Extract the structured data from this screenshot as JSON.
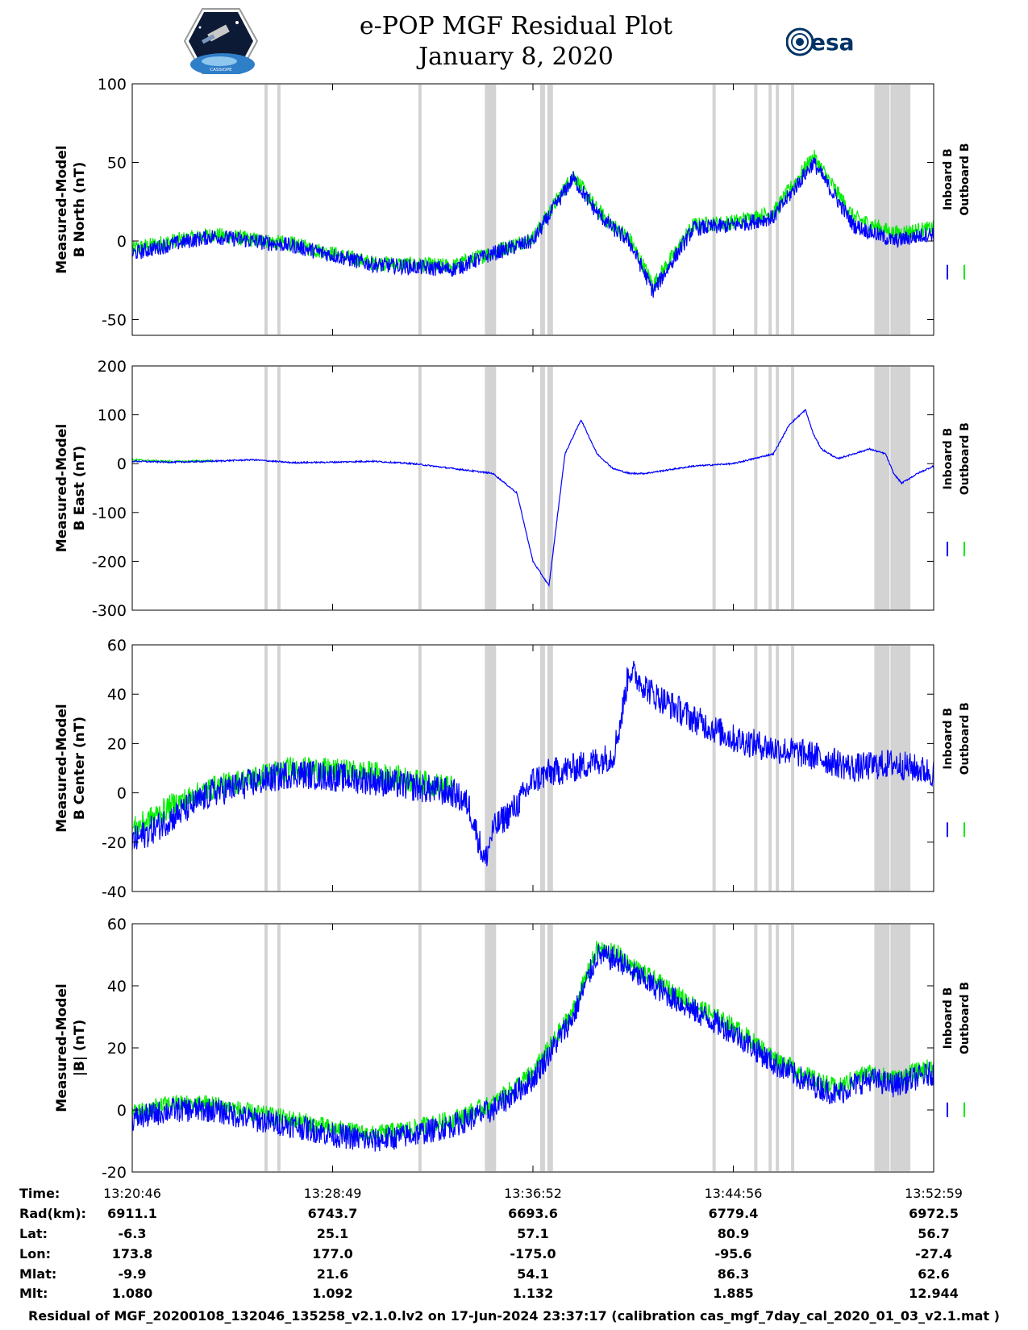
{
  "header": {
    "title_line1": "e-POP MGF Residual Plot",
    "title_line2": "January 8, 2020",
    "logo_left_caption": "CASSIOPE",
    "logo_right_text": "esa"
  },
  "colors": {
    "inboard": "#0000ff",
    "outboard": "#00ee00",
    "shading": "#d3d3d3",
    "axis": "#000000"
  },
  "chart_data": [
    {
      "type": "line",
      "ylabel": [
        "Measured-Model",
        "B North (nT)"
      ],
      "ylim": [
        -60,
        100
      ],
      "yticks": [
        -50,
        0,
        50,
        100
      ],
      "legend": [
        "Inboard B",
        "Outboard B"
      ],
      "legend_position": "right",
      "series": [
        {
          "name": "Inboard B",
          "color": "#0000ff",
          "x": [
            0,
            5,
            10,
            20,
            30,
            40,
            45,
            50,
            55,
            58,
            60,
            62,
            65,
            70,
            75,
            80,
            85,
            90,
            95,
            100
          ],
          "y": [
            -8,
            -2,
            3,
            -3,
            -15,
            -18,
            -8,
            0,
            40,
            18,
            8,
            0,
            -32,
            8,
            10,
            15,
            50,
            10,
            0,
            5
          ],
          "noise": 10
        },
        {
          "name": "Outboard B",
          "color": "#00ee00",
          "x": [
            0,
            5,
            10,
            20,
            30,
            40,
            45,
            50,
            55,
            58,
            60,
            62,
            65,
            70,
            75,
            80,
            85,
            90,
            95,
            100
          ],
          "y": [
            -5,
            0,
            4,
            -2,
            -14,
            -16,
            -7,
            2,
            42,
            20,
            10,
            2,
            -28,
            10,
            12,
            18,
            54,
            15,
            5,
            8
          ],
          "noise": 10
        }
      ]
    },
    {
      "type": "line",
      "ylabel": [
        "Measured-Model",
        "B East (nT)"
      ],
      "ylim": [
        -300,
        200
      ],
      "yticks": [
        -300,
        -200,
        -100,
        0,
        100,
        200
      ],
      "legend": [
        "Inboard B",
        "Outboard B"
      ],
      "legend_position": "right",
      "series": [
        {
          "name": "Inboard B",
          "color": "#0000ff",
          "x": [
            0,
            5,
            10,
            15,
            20,
            25,
            30,
            35,
            40,
            45,
            48,
            50,
            52,
            54,
            56,
            58,
            60,
            62,
            64,
            66,
            70,
            75,
            80,
            82,
            84,
            85,
            86,
            88,
            90,
            92,
            94,
            95,
            96,
            98,
            100
          ],
          "y": [
            5,
            3,
            5,
            8,
            2,
            3,
            5,
            0,
            -10,
            -20,
            -60,
            -200,
            -250,
            20,
            90,
            20,
            -10,
            -20,
            -20,
            -15,
            -5,
            0,
            20,
            80,
            110,
            60,
            30,
            10,
            20,
            30,
            20,
            -20,
            -40,
            -20,
            -5
          ],
          "noise": 3
        },
        {
          "name": "Outboard B",
          "color": "#00ee00",
          "x": [
            0,
            5,
            10
          ],
          "y": [
            8,
            4,
            6
          ],
          "noise": 4
        }
      ]
    },
    {
      "type": "line",
      "ylabel": [
        "Measured-Model",
        "B Center (nT)"
      ],
      "ylim": [
        -40,
        60
      ],
      "yticks": [
        -40,
        -20,
        0,
        20,
        40,
        60
      ],
      "legend": [
        "Inboard B",
        "Outboard B"
      ],
      "legend_position": "right",
      "series": [
        {
          "name": "Inboard B",
          "color": "#0000ff",
          "x": [
            0,
            5,
            10,
            20,
            30,
            40,
            42,
            44,
            45,
            48,
            50,
            52,
            55,
            60,
            61,
            62,
            65,
            70,
            75,
            80,
            85,
            88,
            90,
            95,
            100
          ],
          "y": [
            -20,
            -10,
            0,
            8,
            5,
            0,
            -5,
            -28,
            -15,
            -5,
            5,
            8,
            10,
            15,
            30,
            50,
            40,
            30,
            22,
            18,
            15,
            12,
            10,
            12,
            8
          ],
          "noise": 12
        },
        {
          "name": "Outboard B",
          "color": "#00ee00",
          "x": [
            0,
            5,
            10,
            20,
            30,
            40
          ],
          "y": [
            -15,
            -5,
            2,
            10,
            8,
            2
          ],
          "noise": 10
        }
      ]
    },
    {
      "type": "line",
      "ylabel": [
        "Measured-Model",
        "|B| (nT)"
      ],
      "ylim": [
        -20,
        60
      ],
      "yticks": [
        -20,
        0,
        20,
        40,
        60
      ],
      "legend": [
        "Inboard B",
        "Outboard B"
      ],
      "legend_position": "right",
      "series": [
        {
          "name": "Inboard B",
          "color": "#0000ff",
          "x": [
            0,
            5,
            10,
            15,
            20,
            25,
            30,
            35,
            40,
            45,
            50,
            55,
            58,
            61,
            62,
            65,
            70,
            75,
            80,
            85,
            88,
            90,
            92,
            95,
            100
          ],
          "y": [
            -3,
            0,
            0,
            -3,
            -5,
            -8,
            -10,
            -8,
            -5,
            0,
            10,
            30,
            50,
            48,
            45,
            40,
            32,
            25,
            15,
            8,
            5,
            8,
            10,
            8,
            12
          ],
          "noise": 8
        },
        {
          "name": "Outboard B",
          "color": "#00ee00",
          "x": [
            0,
            5,
            10,
            15,
            20,
            25,
            30,
            35,
            40,
            45,
            50,
            55,
            58,
            61,
            62,
            65,
            70,
            75,
            80,
            85,
            88,
            90,
            92,
            95,
            100
          ],
          "y": [
            -1,
            2,
            2,
            -1,
            -3,
            -6,
            -8,
            -6,
            -3,
            2,
            12,
            32,
            52,
            50,
            47,
            42,
            34,
            27,
            17,
            10,
            7,
            10,
            12,
            10,
            14
          ],
          "noise": 6
        }
      ]
    }
  ],
  "shaded_intervals_percent": [
    [
      16.5,
      16.9
    ],
    [
      18.1,
      18.5
    ],
    [
      35.7,
      36.1
    ],
    [
      44.0,
      45.4
    ],
    [
      50.9,
      51.5
    ],
    [
      51.8,
      52.5
    ],
    [
      72.4,
      72.8
    ],
    [
      77.6,
      78.0
    ],
    [
      79.4,
      79.8
    ],
    [
      80.3,
      80.7
    ],
    [
      82.2,
      82.6
    ],
    [
      92.6,
      94.5
    ],
    [
      94.6,
      97.1
    ]
  ],
  "x_axis": {
    "ticks_percent": [
      0,
      25,
      50,
      75,
      100
    ],
    "row_labels": [
      "Time:",
      "Rad(km):",
      "Lat:",
      "Lon:",
      "Mlat:",
      "Mlt:"
    ],
    "columns": [
      [
        "13:20:46",
        "6911.1",
        "-6.3",
        "173.8",
        "-9.9",
        "1.080"
      ],
      [
        "13:28:49",
        "6743.7",
        "25.1",
        "177.0",
        "21.6",
        "1.092"
      ],
      [
        "13:36:52",
        "6693.6",
        "57.1",
        "-175.0",
        "54.1",
        "1.132"
      ],
      [
        "13:44:56",
        "6779.4",
        "80.9",
        "-95.6",
        "86.3",
        "1.885"
      ],
      [
        "13:52:59",
        "6972.5",
        "56.7",
        "-27.4",
        "62.6",
        "12.944"
      ]
    ]
  },
  "footer": "Residual of MGF_20200108_132046_135258_v2.1.0.lv2 on 17-Jun-2024 23:37:17 (calibration cas_mgf_7day_cal_2020_01_03_v2.1.mat )"
}
